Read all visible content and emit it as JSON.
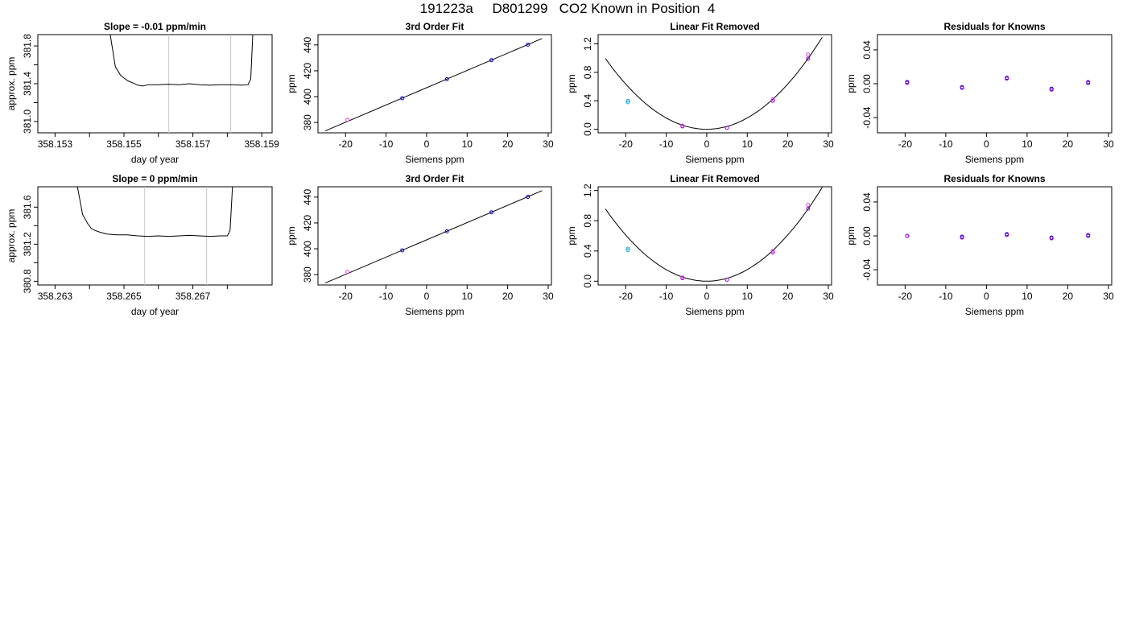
{
  "figure": {
    "title": "191223a     D801299   CO2 Known in Position  4"
  },
  "colors": {
    "axes": "#000000",
    "curve": "#000000",
    "window_lines": "#c8c8c8",
    "point_blue": "#0000cc",
    "point_purple": "#9a00e6",
    "point_magenta": "#dd44dd",
    "point_cyan": "#2aa9d8"
  },
  "chart_data": [
    {
      "type": "line",
      "title": "Slope =  -0.01  ppm/min",
      "xlabel": "day of year",
      "ylabel": "approx. ppm",
      "xlim": [
        358.1525,
        358.1593
      ],
      "ylim": [
        380.88,
        381.92
      ],
      "xticks": [
        358.153,
        358.154,
        358.155,
        358.156,
        358.157,
        358.158,
        358.159
      ],
      "xtick_labels": [
        "358.153",
        "",
        "358.155",
        "",
        "358.157",
        "",
        "358.159"
      ],
      "yticks": [
        381.0,
        381.2,
        381.4,
        381.6,
        381.8
      ],
      "ytick_labels": [
        "381.0",
        "",
        "381.4",
        "",
        "381.8"
      ],
      "window_lines": [
        358.1563,
        358.1581
      ],
      "grid": false,
      "x": [
        358.1546,
        358.15475,
        358.1549,
        358.155,
        358.15512,
        358.15525,
        358.1554,
        358.15555,
        358.1557,
        358.156,
        358.1563,
        358.1566,
        358.1569,
        358.1572,
        358.1575,
        358.1578,
        358.1581,
        358.1584,
        358.1586,
        358.15868,
        358.15874
      ],
      "y": [
        381.92,
        381.58,
        381.49,
        381.46,
        381.43,
        381.41,
        381.385,
        381.375,
        381.39,
        381.39,
        381.395,
        381.39,
        381.4,
        381.39,
        381.385,
        381.39,
        381.39,
        381.385,
        381.39,
        381.45,
        381.92
      ]
    },
    {
      "type": "scatter",
      "title": "3rd Order Fit",
      "xlabel": "Siemens ppm",
      "ylabel": "ppm",
      "xlim": [
        -26.8,
        30.8
      ],
      "ylim": [
        372,
        448
      ],
      "xticks": [
        -20,
        -10,
        0,
        10,
        20,
        30
      ],
      "xtick_labels": [
        "-20",
        "-10",
        "0",
        "10",
        "20",
        "30"
      ],
      "yticks": [
        380,
        400,
        420,
        440
      ],
      "ytick_labels": [
        "380",
        "400",
        "420",
        "440"
      ],
      "fit_line": {
        "x": [
          -25,
          28.5
        ],
        "y": [
          373.5,
          445
        ]
      },
      "series": [
        {
          "color_key": "point_magenta",
          "x": [
            -19.5
          ],
          "y": [
            382
          ]
        },
        {
          "color_key": "point_blue",
          "x": [
            -6,
            5,
            16,
            25
          ],
          "y": [
            398.8,
            413.5,
            428.2,
            440.2
          ]
        }
      ]
    },
    {
      "type": "scatter",
      "title": "Linear Fit Removed",
      "xlabel": "Siemens ppm",
      "ylabel": "ppm",
      "xlim": [
        -26.8,
        30.8
      ],
      "ylim": [
        -0.05,
        1.33
      ],
      "xticks": [
        -20,
        -10,
        0,
        10,
        20,
        30
      ],
      "xtick_labels": [
        "-20",
        "-10",
        "0",
        "10",
        "20",
        "30"
      ],
      "yticks": [
        0.0,
        0.4,
        0.8,
        1.2
      ],
      "ytick_labels": [
        "0.0",
        "0.4",
        "0.8",
        "1.2"
      ],
      "fit_curve": {
        "type": "quadratic",
        "a": 0.00159,
        "x0": 0,
        "y0": 0,
        "x_range": [
          -25,
          28.5
        ]
      },
      "series": [
        {
          "color_key": "point_cyan",
          "x": [
            -19.5,
            -19.4
          ],
          "y": [
            0.38,
            0.4
          ]
        },
        {
          "color_key": "point_purple",
          "x": [
            -6,
            5,
            16.3,
            25
          ],
          "y": [
            0.04,
            0.02,
            0.4,
            0.99
          ]
        },
        {
          "color_key": "point_magenta",
          "x": [
            -6,
            16.3,
            25
          ],
          "y": [
            0.05,
            0.42,
            1.05
          ]
        }
      ]
    },
    {
      "type": "scatter",
      "title": "Residuals for Knowns",
      "xlabel": "Siemens ppm",
      "ylabel": "ppm",
      "xlim": [
        -26.8,
        30.8
      ],
      "ylim": [
        -0.058,
        0.058
      ],
      "xticks": [
        -20,
        -10,
        0,
        10,
        20,
        30
      ],
      "xtick_labels": [
        "-20",
        "-10",
        "0",
        "10",
        "20",
        "30"
      ],
      "yticks": [
        -0.04,
        0.0,
        0.04
      ],
      "ytick_labels": [
        "-0.04",
        "0.00",
        "0.04"
      ],
      "series": [
        {
          "color_key": "point_blue",
          "x": [
            -19.5,
            -6,
            5,
            16,
            25
          ],
          "y": [
            0.002,
            -0.004,
            0.007,
            -0.006,
            0.001
          ]
        },
        {
          "color_key": "point_purple",
          "x": [
            -19.5,
            -6,
            5,
            16,
            25
          ],
          "y": [
            0.001,
            -0.005,
            0.006,
            -0.007,
            0.002
          ]
        }
      ]
    },
    {
      "type": "line",
      "title": "Slope =  0  ppm/min",
      "xlabel": "day of year",
      "ylabel": "approx. ppm",
      "xlim": [
        358.2625,
        358.2693
      ],
      "ylim": [
        380.76,
        381.82
      ],
      "xticks": [
        358.263,
        358.264,
        358.265,
        358.266,
        358.267,
        358.268
      ],
      "xtick_labels": [
        "358.263",
        "",
        "358.265",
        "",
        "358.267",
        ""
      ],
      "yticks": [
        380.8,
        381.0,
        381.2,
        381.4,
        381.6
      ],
      "ytick_labels": [
        "380.8",
        "",
        "381.2",
        "",
        "381.6"
      ],
      "window_lines": [
        358.2656,
        358.2674
      ],
      "grid": false,
      "x": [
        358.26365,
        358.2638,
        358.26395,
        358.26405,
        358.26415,
        358.2643,
        358.2645,
        358.2648,
        358.2651,
        358.2654,
        358.2657,
        358.266,
        358.2663,
        358.2666,
        358.2669,
        358.2672,
        358.2675,
        358.2678,
        358.268,
        358.26808,
        358.26815
      ],
      "y": [
        381.82,
        381.52,
        381.42,
        381.37,
        381.35,
        381.33,
        381.31,
        381.3,
        381.3,
        381.29,
        381.285,
        381.29,
        381.285,
        381.29,
        381.295,
        381.29,
        381.285,
        381.29,
        381.29,
        381.35,
        381.82
      ]
    },
    {
      "type": "scatter",
      "title": "3rd Order Fit",
      "xlabel": "Siemens ppm",
      "ylabel": "ppm",
      "xlim": [
        -26.8,
        30.8
      ],
      "ylim": [
        372,
        448
      ],
      "xticks": [
        -20,
        -10,
        0,
        10,
        20,
        30
      ],
      "xtick_labels": [
        "-20",
        "-10",
        "0",
        "10",
        "20",
        "30"
      ],
      "yticks": [
        380,
        400,
        420,
        440
      ],
      "ytick_labels": [
        "380",
        "400",
        "420",
        "440"
      ],
      "fit_line": {
        "x": [
          -25,
          28.5
        ],
        "y": [
          373.5,
          445
        ]
      },
      "series": [
        {
          "color_key": "point_magenta",
          "x": [
            -19.5
          ],
          "y": [
            382
          ]
        },
        {
          "color_key": "point_blue",
          "x": [
            -6,
            5,
            16,
            25
          ],
          "y": [
            398.8,
            413.5,
            428.2,
            440.2
          ]
        }
      ]
    },
    {
      "type": "scatter",
      "title": "Linear Fit Removed",
      "xlabel": "Siemens ppm",
      "ylabel": "ppm",
      "xlim": [
        -26.8,
        30.8
      ],
      "ylim": [
        -0.05,
        1.25
      ],
      "xticks": [
        -20,
        -10,
        0,
        10,
        20,
        30
      ],
      "xtick_labels": [
        "-20",
        "-10",
        "0",
        "10",
        "20",
        "30"
      ],
      "yticks": [
        0.0,
        0.4,
        0.8,
        1.2
      ],
      "ytick_labels": [
        "0.0",
        "0.4",
        "0.8",
        "1.2"
      ],
      "fit_curve": {
        "type": "quadratic",
        "a": 0.00153,
        "x0": 0,
        "y0": 0,
        "x_range": [
          -25,
          28.5
        ]
      },
      "series": [
        {
          "color_key": "point_cyan",
          "x": [
            -19.5,
            -19.4
          ],
          "y": [
            0.41,
            0.43
          ]
        },
        {
          "color_key": "point_purple",
          "x": [
            -6,
            5,
            16.3,
            25
          ],
          "y": [
            0.04,
            0.02,
            0.38,
            0.96
          ]
        },
        {
          "color_key": "point_magenta",
          "x": [
            -6,
            16.3,
            25
          ],
          "y": [
            0.05,
            0.4,
            1.01
          ]
        }
      ]
    },
    {
      "type": "scatter",
      "title": "Residuals for Knowns",
      "xlabel": "Siemens ppm",
      "ylabel": "ppm",
      "xlim": [
        -26.8,
        30.8
      ],
      "ylim": [
        -0.058,
        0.058
      ],
      "xticks": [
        -20,
        -10,
        0,
        10,
        20,
        30
      ],
      "xtick_labels": [
        "-20",
        "-10",
        "0",
        "10",
        "20",
        "30"
      ],
      "yticks": [
        -0.04,
        0.0,
        0.04
      ],
      "ytick_labels": [
        "-0.04",
        "0.00",
        "0.04"
      ],
      "series": [
        {
          "color_key": "point_blue",
          "x": [
            -19.5,
            -6,
            5,
            16,
            25
          ],
          "y": [
            0.0,
            -0.001,
            0.002,
            -0.002,
            0.0
          ]
        },
        {
          "color_key": "point_purple",
          "x": [
            -19.5,
            -6,
            5,
            16,
            25
          ],
          "y": [
            0.0,
            -0.002,
            0.001,
            -0.003,
            0.001
          ]
        }
      ]
    }
  ]
}
